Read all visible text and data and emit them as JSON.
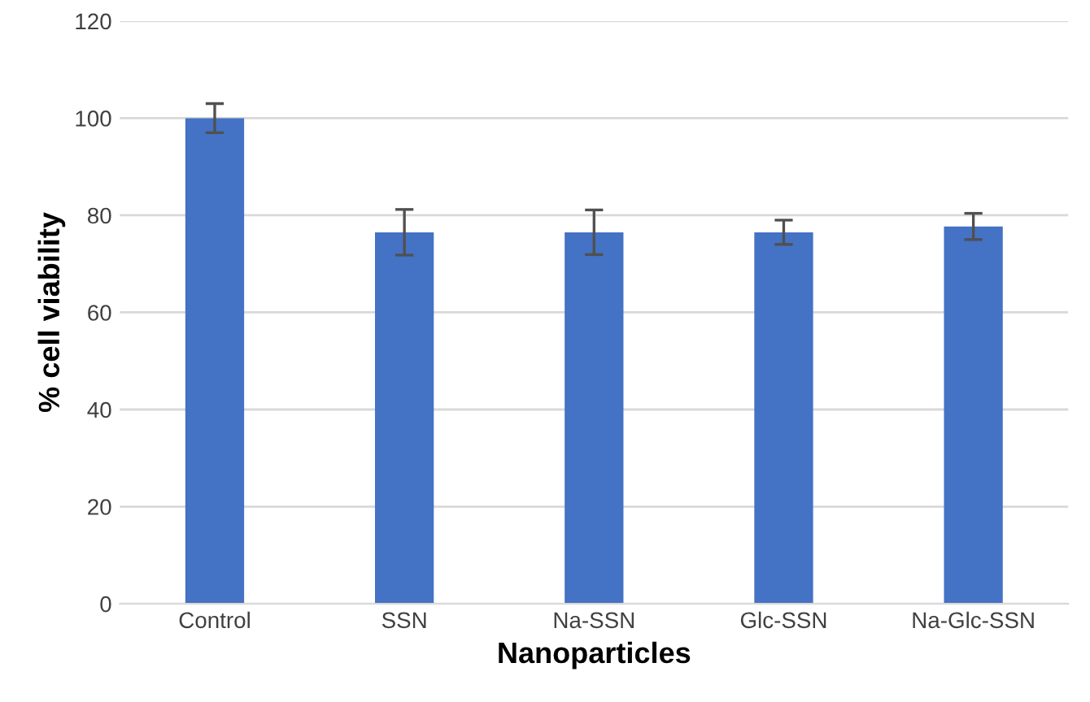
{
  "chart_data": {
    "type": "bar",
    "xlabel": "Nanoparticles",
    "ylabel": "% cell viability",
    "categories": [
      "Control",
      "SSN",
      "Na-SSN",
      "Glc-SSN",
      "Na-Glc-SSN"
    ],
    "values": [
      100,
      76.5,
      76.5,
      76.5,
      77.7
    ],
    "errors": [
      3,
      4.7,
      4.6,
      2.5,
      2.7
    ],
    "color": "#4472c4",
    "ylim": [
      0,
      120
    ],
    "yticks": [
      0,
      20,
      40,
      60,
      80,
      100,
      120
    ],
    "grid": "y",
    "legend": false
  }
}
